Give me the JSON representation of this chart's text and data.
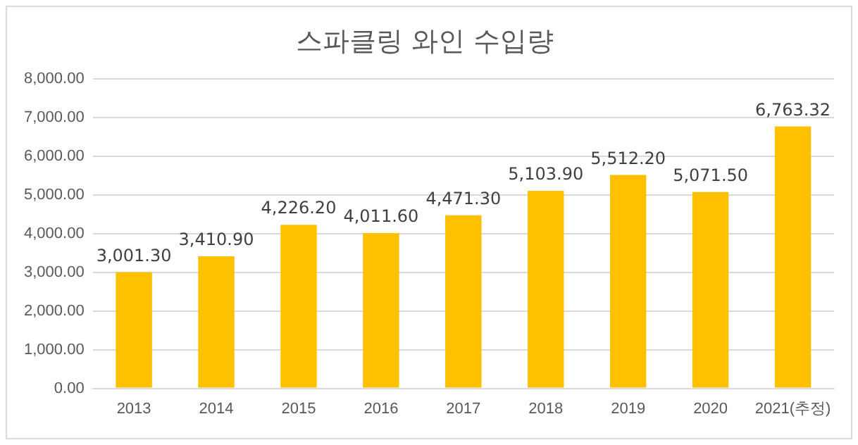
{
  "chart_data": {
    "type": "bar",
    "title": "스파클링 와인 수입량",
    "categories": [
      "2013",
      "2014",
      "2015",
      "2016",
      "2017",
      "2018",
      "2019",
      "2020",
      "2021(추정)"
    ],
    "values": [
      3001.3,
      3410.9,
      4226.2,
      4011.6,
      4471.3,
      5103.9,
      5512.2,
      5071.5,
      6763.32
    ],
    "value_labels": [
      "3,001.30",
      "3,410.90",
      "4,226.20",
      "4,011.60",
      "4,471.30",
      "5,103.90",
      "5,512.20",
      "5,071.50",
      "6,763.32"
    ],
    "color": "#ffc000",
    "ylim": [
      0,
      8000
    ],
    "yticks": [
      {
        "value": 0,
        "label": "0.00"
      },
      {
        "value": 1000,
        "label": "1,000.00"
      },
      {
        "value": 2000,
        "label": "2,000.00"
      },
      {
        "value": 3000,
        "label": "3,000.00"
      },
      {
        "value": 4000,
        "label": "4,000.00"
      },
      {
        "value": 5000,
        "label": "5,000.00"
      },
      {
        "value": 6000,
        "label": "6,000.00"
      },
      {
        "value": 7000,
        "label": "7,000.00"
      },
      {
        "value": 8000,
        "label": "8,000.00"
      }
    ],
    "grid": "y"
  }
}
